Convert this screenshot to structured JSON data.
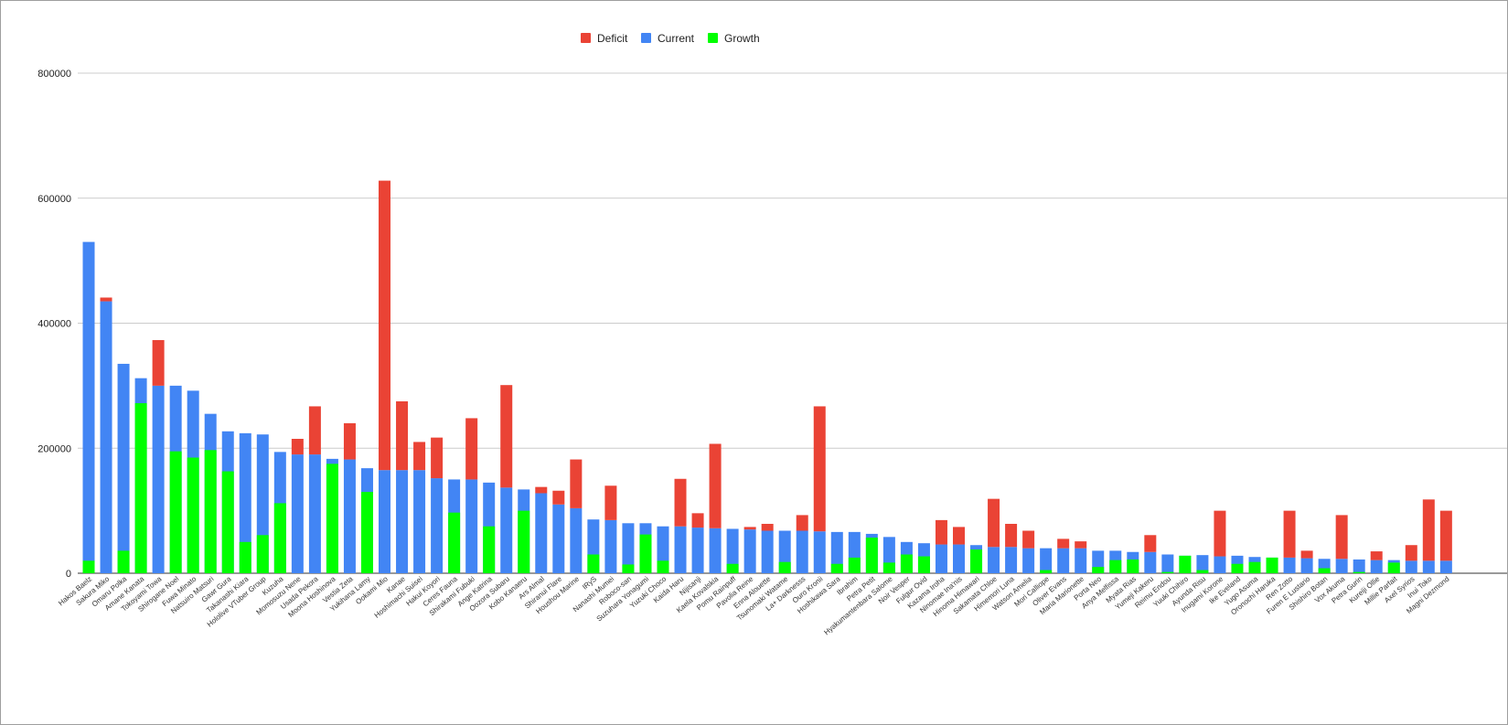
{
  "chart_data": {
    "type": "bar",
    "stacked": true,
    "title": "",
    "xlabel": "",
    "ylabel": "",
    "ylim": [
      0,
      800000
    ],
    "yticks": [
      0,
      200000,
      400000,
      600000,
      800000
    ],
    "ytick_labels": [
      "0",
      "200000",
      "400000",
      "600000",
      "800000"
    ],
    "grid": true,
    "legend_position": "top",
    "colors": {
      "deficit": "#ea4335",
      "current": "#4285f4",
      "growth": "#00ff00"
    },
    "legend": [
      {
        "name": "Deficit",
        "color": "#ea4335"
      },
      {
        "name": "Current",
        "color": "#4285f4"
      },
      {
        "name": "Growth",
        "color": "#00ff00"
      }
    ],
    "categories": [
      "Hakos Baelz",
      "Sakura Miko",
      "Omaru Polka",
      "Amane Kanata",
      "Tokoyami Towa",
      "Shirogane Noel",
      "Fuwa Minato",
      "Natsuiro Matsuri",
      "Gawr Gura",
      "Takanashi Kiara",
      "Hololive VTuber Group",
      "Kuzuha",
      "Momosuzu Nene",
      "Usada Pekora",
      "Moona Hoshinova",
      "Vestia Zeta",
      "Yukihana Lamy",
      "Ookami Mio",
      "Kanae",
      "Hoshimachi Suisei",
      "Hakui Koyori",
      "Ceres Fauna",
      "Shirakami Fubuki",
      "Ange Katrina",
      "Oozora Subaru",
      "Kobo Kanaeru",
      "Ars Almal",
      "Shiranui Flare",
      "Houshou Marine",
      "IRyS",
      "Nanashi Mumei",
      "Roboco-san",
      "Suzuhara Yonagumi",
      "Yuzuki Choco",
      "Kaida Haru",
      "Nijisanji",
      "Kaela Kovalskia",
      "Pomu Rainpuff",
      "Pavolia Reine",
      "Enna Alouette",
      "Tsunomaki Watame",
      "La+ Darknesss",
      "Ouro Kronii",
      "Hoshikawa Sara",
      "Ibrahim",
      "Petra Petit",
      "Hyakumantenbara Salome",
      "Noir Vesper",
      "Fulgur Ovid",
      "Kazama Iroha",
      "Ninomae Ina'nis",
      "Hinoma Himawari",
      "Sakamata Chloe",
      "Himemori Luna",
      "Watson Amelia",
      "Mori Calliope",
      "Oliver Evans",
      "Maria Marionette",
      "Porta Neo",
      "Anya Melfissa",
      "Myata Rias",
      "Yumeji Kakeru",
      "Reimu Endou",
      "Yuuki Chihiro",
      "Ayunda Risu",
      "Inugami Korone",
      "Ike Eveland",
      "Yugo Asuma",
      "Oronochi Haruka",
      "Ren Zotto",
      "Furen E Lustario",
      "Shishiro Botan",
      "Vox Akuma",
      "Petra Gurin",
      "Kureiji Ollie",
      "Millie Parfait",
      "Axel Syrios",
      "Inui Toko",
      "Magni Dezmond"
    ],
    "series": [
      {
        "name": "Growth",
        "values": [
          20000,
          0,
          36000,
          272000,
          0,
          195000,
          185000,
          197000,
          163000,
          50000,
          61000,
          112000,
          0,
          0,
          175000,
          0,
          130000,
          0,
          0,
          0,
          0,
          97000,
          0,
          75000,
          0,
          100000,
          0,
          0,
          0,
          30000,
          0,
          14000,
          62000,
          20000,
          0,
          0,
          0,
          15000,
          0,
          0,
          18000,
          0,
          0,
          15000,
          25000,
          57000,
          17000,
          30000,
          27000,
          0,
          0,
          38000,
          0,
          0,
          0,
          5000,
          0,
          0,
          10000,
          21000,
          22000,
          0,
          2000,
          28000,
          5000,
          0,
          15000,
          18000,
          25000,
          0,
          0,
          8000,
          0,
          2000,
          0,
          17000,
          0,
          0,
          0
        ]
      },
      {
        "name": "Current",
        "values": [
          530000,
          435000,
          335000,
          312000,
          300000,
          300000,
          292000,
          255000,
          227000,
          224000,
          222000,
          194000,
          190000,
          190000,
          183000,
          182000,
          168000,
          165000,
          165000,
          165000,
          152000,
          150000,
          150000,
          145000,
          137000,
          134000,
          128000,
          110000,
          104000,
          86000,
          85000,
          80000,
          80000,
          75000,
          75000,
          73000,
          72000,
          71000,
          70000,
          68000,
          68000,
          68000,
          67000,
          66000,
          66000,
          63000,
          58000,
          50000,
          48000,
          46000,
          46000,
          45000,
          42000,
          42000,
          40000,
          40000,
          40000,
          40000,
          36000,
          36000,
          34000,
          34000,
          30000,
          28000,
          29000,
          27000,
          28000,
          26000,
          25000,
          25000,
          24000,
          23000,
          23000,
          22000,
          21000,
          21000,
          20000,
          20000,
          20000
        ]
      },
      {
        "name": "Deficit",
        "values": [
          0,
          6000,
          0,
          0,
          73000,
          0,
          0,
          0,
          0,
          0,
          0,
          0,
          25000,
          77000,
          0,
          58000,
          0,
          463000,
          110000,
          45000,
          65000,
          0,
          98000,
          0,
          164000,
          0,
          10000,
          22000,
          78000,
          0,
          55000,
          0,
          0,
          0,
          76000,
          23000,
          135000,
          0,
          4000,
          11000,
          0,
          25000,
          200000,
          0,
          0,
          0,
          0,
          0,
          0,
          39000,
          28000,
          0,
          77000,
          37000,
          28000,
          0,
          15000,
          11000,
          0,
          0,
          0,
          27000,
          0,
          0,
          0,
          73000,
          0,
          0,
          0,
          75000,
          12000,
          0,
          70000,
          0,
          14000,
          0,
          25000,
          98000,
          80000
        ]
      }
    ]
  }
}
